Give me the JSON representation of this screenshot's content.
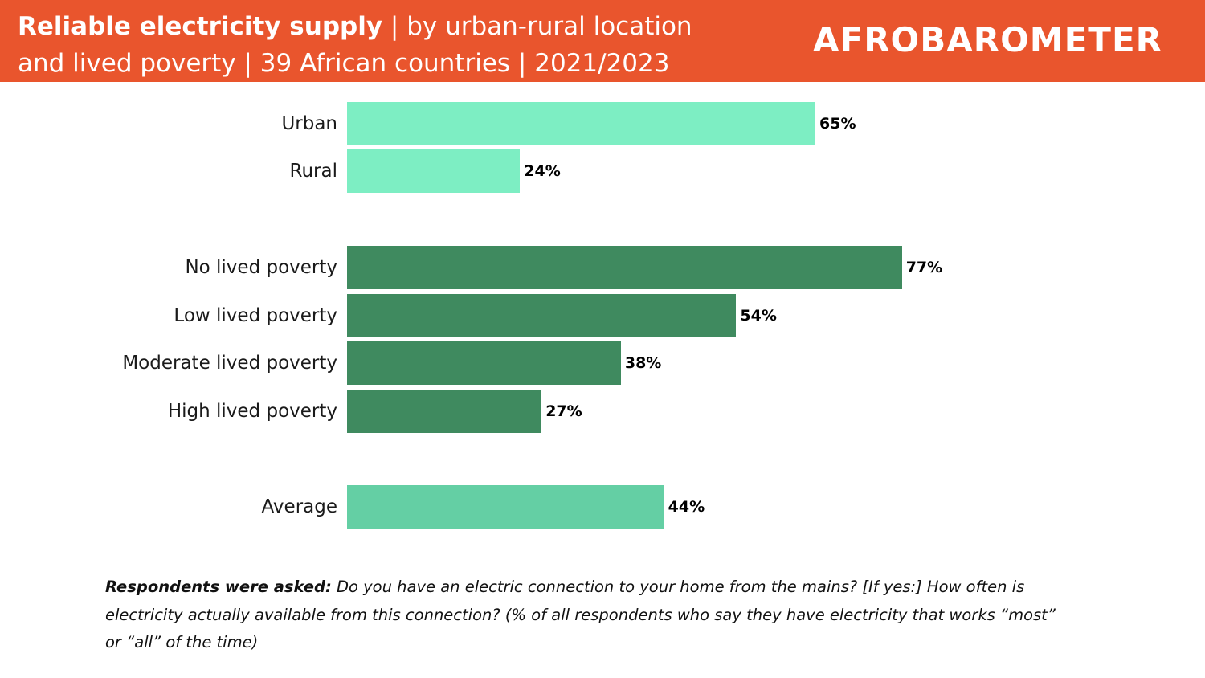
{
  "header": {
    "title_bold": "Reliable electricity supply",
    "title_rest_line1": " | by urban-rural location",
    "title_line2": "and lived poverty | 39 African countries | 2021/2023",
    "logo_text": "AFROBAROMETER",
    "background_color": "#e9552d"
  },
  "chart_data": {
    "type": "bar",
    "orientation": "horizontal",
    "categories": [
      "Urban",
      "Rural",
      "No lived poverty",
      "Low lived poverty",
      "Moderate lived poverty",
      "High lived poverty",
      "Average"
    ],
    "values": [
      65,
      24,
      77,
      54,
      38,
      27,
      44
    ],
    "value_labels": [
      "65%",
      "24%",
      "77%",
      "54%",
      "38%",
      "27%",
      "44%"
    ],
    "groups": [
      {
        "name": "Urban-rural location",
        "members": [
          0,
          1
        ],
        "color": "#7deec3"
      },
      {
        "name": "Lived poverty",
        "members": [
          2,
          3,
          4,
          5
        ],
        "color": "#3f8a5f"
      },
      {
        "name": "Average",
        "members": [
          6
        ],
        "color": "#64cfa4"
      }
    ],
    "xlim": [
      0,
      100
    ],
    "grid": false,
    "legend": "none"
  },
  "footnote": {
    "bold": "Respondents were asked:",
    "text": " Do you have an electric connection to your home from the mains? [If yes:] How often is electricity actually available from this connection? (% of all respondents who say they have electricity that works “most” or “all” of the time)"
  }
}
